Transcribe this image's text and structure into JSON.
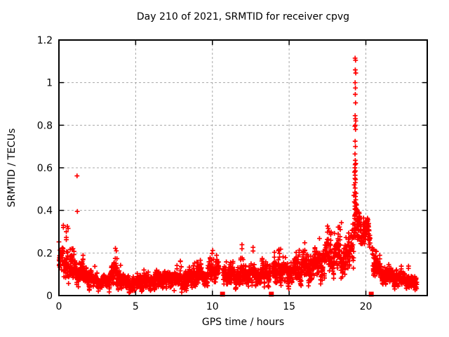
{
  "window": {
    "title": "Day 210 of 2021, SRMTID for receiver cpvg"
  },
  "chart_data": {
    "type": "scatter",
    "title": "Day 210 of 2021, SRMTID for receiver cpvg",
    "xlabel": "GPS time / hours",
    "ylabel": "SRMTID / TECUs",
    "xlim": [
      0,
      24
    ],
    "ylim": [
      0,
      1.2
    ],
    "xticks": [
      0,
      5,
      10,
      15,
      20
    ],
    "xtick_labels": [
      "0",
      "5",
      "10",
      "15",
      "20"
    ],
    "yticks": [
      0,
      0.2,
      0.4,
      0.6,
      0.8,
      1,
      1.2
    ],
    "ytick_labels": [
      "0",
      "0.2",
      "0.4",
      "0.6",
      "0.8",
      "1",
      "1.2"
    ],
    "grid": true,
    "legend": null,
    "marker": "plus",
    "marker_color": "#ff0000",
    "grid_color": "#a8a8a8",
    "border_color": "#000000",
    "series_name": "SRMTID",
    "seed": 210,
    "sample_step_hours": 0.012,
    "data_start_hour": 0.0,
    "data_end_hour": 23.32,
    "band_profile": [
      [
        0.0,
        0.165,
        0.075
      ],
      [
        0.35,
        0.17,
        0.08
      ],
      [
        0.7,
        0.145,
        0.075
      ],
      [
        1.0,
        0.13,
        0.06
      ],
      [
        1.4,
        0.115,
        0.055
      ],
      [
        1.8,
        0.09,
        0.045
      ],
      [
        2.2,
        0.07,
        0.035
      ],
      [
        2.7,
        0.06,
        0.03
      ],
      [
        3.1,
        0.065,
        0.035
      ],
      [
        3.5,
        0.09,
        0.05
      ],
      [
        3.75,
        0.12,
        0.07
      ],
      [
        4.0,
        0.07,
        0.04
      ],
      [
        4.5,
        0.055,
        0.03
      ],
      [
        5.0,
        0.05,
        0.028
      ],
      [
        5.4,
        0.075,
        0.04
      ],
      [
        5.8,
        0.06,
        0.032
      ],
      [
        6.3,
        0.068,
        0.035
      ],
      [
        6.7,
        0.08,
        0.042
      ],
      [
        7.1,
        0.07,
        0.038
      ],
      [
        7.5,
        0.088,
        0.045
      ],
      [
        7.9,
        0.072,
        0.038
      ],
      [
        8.3,
        0.072,
        0.04
      ],
      [
        8.7,
        0.09,
        0.048
      ],
      [
        9.1,
        0.1,
        0.05
      ],
      [
        9.5,
        0.095,
        0.048
      ],
      [
        9.9,
        0.115,
        0.055
      ],
      [
        10.15,
        0.13,
        0.055
      ],
      [
        10.45,
        0.115,
        0.05
      ],
      [
        10.8,
        0.105,
        0.05
      ],
      [
        11.2,
        0.095,
        0.048
      ],
      [
        11.6,
        0.09,
        0.045
      ],
      [
        12.0,
        0.1,
        0.05
      ],
      [
        12.5,
        0.098,
        0.05
      ],
      [
        13.0,
        0.095,
        0.048
      ],
      [
        13.5,
        0.108,
        0.052
      ],
      [
        14.0,
        0.11,
        0.055
      ],
      [
        14.45,
        0.125,
        0.06
      ],
      [
        14.8,
        0.108,
        0.05
      ],
      [
        15.2,
        0.115,
        0.055
      ],
      [
        15.6,
        0.12,
        0.058
      ],
      [
        16.0,
        0.135,
        0.062
      ],
      [
        16.4,
        0.128,
        0.058
      ],
      [
        16.8,
        0.145,
        0.065
      ],
      [
        17.2,
        0.16,
        0.07
      ],
      [
        17.6,
        0.2,
        0.085
      ],
      [
        17.9,
        0.165,
        0.07
      ],
      [
        18.2,
        0.205,
        0.085
      ],
      [
        18.5,
        0.175,
        0.075
      ],
      [
        18.8,
        0.165,
        0.07
      ],
      [
        19.0,
        0.2,
        0.08
      ],
      [
        19.15,
        0.28,
        0.1
      ],
      [
        19.25,
        0.33,
        0.12
      ],
      [
        19.35,
        0.34,
        0.12
      ],
      [
        19.45,
        0.32,
        0.09
      ],
      [
        19.6,
        0.3,
        0.065
      ],
      [
        19.8,
        0.285,
        0.065
      ],
      [
        19.95,
        0.305,
        0.05
      ],
      [
        20.1,
        0.31,
        0.05
      ],
      [
        20.25,
        0.27,
        0.06
      ],
      [
        20.5,
        0.175,
        0.06
      ],
      [
        20.75,
        0.135,
        0.05
      ],
      [
        21.0,
        0.11,
        0.045
      ],
      [
        21.4,
        0.097,
        0.042
      ],
      [
        21.8,
        0.087,
        0.04
      ],
      [
        22.2,
        0.08,
        0.038
      ],
      [
        22.6,
        0.075,
        0.035
      ],
      [
        23.0,
        0.062,
        0.03
      ],
      [
        23.32,
        0.05,
        0.025
      ]
    ],
    "spike_points": [
      [
        19.3,
        1.115
      ],
      [
        19.33,
        1.105
      ],
      [
        19.31,
        1.06
      ],
      [
        19.34,
        1.045
      ],
      [
        19.3,
        1.0
      ],
      [
        19.32,
        0.975
      ],
      [
        19.31,
        0.945
      ],
      [
        19.33,
        0.905
      ],
      [
        19.3,
        0.845
      ],
      [
        19.32,
        0.83
      ],
      [
        19.34,
        0.82
      ],
      [
        19.31,
        0.8
      ],
      [
        19.28,
        0.795
      ],
      [
        19.33,
        0.78
      ],
      [
        19.3,
        0.725
      ],
      [
        19.32,
        0.7
      ],
      [
        19.29,
        0.665
      ],
      [
        19.31,
        0.635
      ],
      [
        19.34,
        0.62
      ],
      [
        19.3,
        0.615
      ],
      [
        19.28,
        0.6
      ],
      [
        19.32,
        0.585
      ],
      [
        19.3,
        0.565
      ],
      [
        19.29,
        0.55
      ],
      [
        19.33,
        0.545
      ],
      [
        19.31,
        0.53
      ],
      [
        19.3,
        0.505
      ],
      [
        19.28,
        0.485
      ],
      [
        19.32,
        0.465
      ],
      [
        19.34,
        0.45
      ],
      [
        19.3,
        0.435
      ],
      [
        19.29,
        0.42
      ],
      [
        19.31,
        0.405
      ],
      [
        19.26,
        0.58
      ],
      [
        19.24,
        0.52
      ],
      [
        19.22,
        0.47
      ],
      [
        19.25,
        0.44
      ],
      [
        19.36,
        0.48
      ],
      [
        19.38,
        0.43
      ],
      [
        19.36,
        0.41
      ]
    ],
    "outlier_points": [
      [
        1.18,
        0.562
      ],
      [
        1.2,
        0.395
      ],
      [
        0.55,
        0.325
      ],
      [
        0.6,
        0.315
      ],
      [
        0.48,
        0.3
      ],
      [
        3.68,
        0.222
      ],
      [
        3.74,
        0.21
      ],
      [
        10.02,
        0.212
      ],
      [
        9.98,
        0.198
      ],
      [
        14.45,
        0.218
      ],
      [
        16.02,
        0.248
      ],
      [
        16.98,
        0.268
      ],
      [
        17.55,
        0.315
      ],
      [
        17.62,
        0.3
      ],
      [
        18.28,
        0.322
      ],
      [
        18.33,
        0.31
      ],
      [
        19.95,
        0.345
      ],
      [
        20.05,
        0.35
      ],
      [
        19.9,
        0.34
      ]
    ],
    "gap_intervals": [
      [
        10.43,
        10.7
      ],
      [
        13.78,
        13.92
      ],
      [
        20.29,
        20.42
      ]
    ],
    "gap_marker_x": [
      10.66,
      13.84,
      20.35
    ],
    "gap_marker_y": 0
  }
}
